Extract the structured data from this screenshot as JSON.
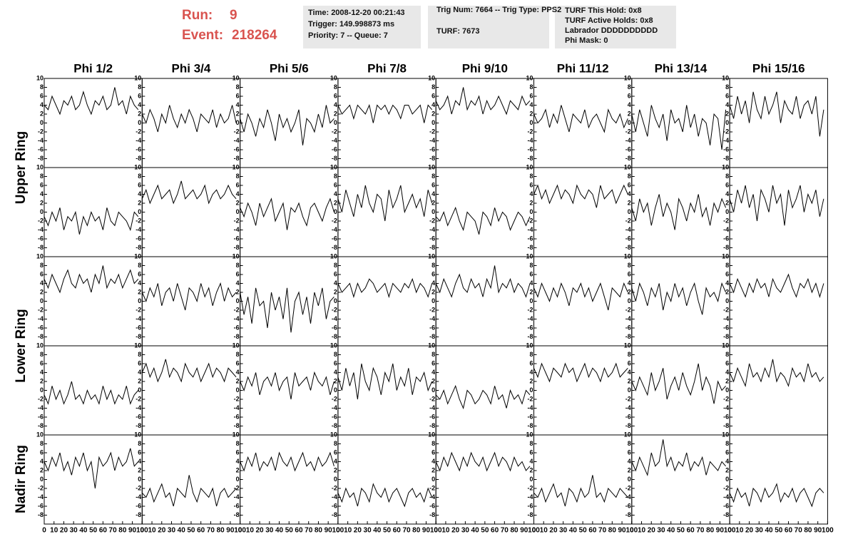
{
  "header": {
    "run_label": "Run:",
    "run": "9",
    "event_label": "Event:",
    "event": "218264"
  },
  "info": [
    [
      "Time: 2008-12-20 00:21:43",
      "Trigger: 149.998873 ms",
      "Priority: 7 -- Queue: 7"
    ],
    [
      "Trig Num: 7664 -- Trig Type: PPS2",
      "TURF: 7673"
    ],
    [
      "TURF This Hold: 0x8",
      "TURF Active Holds: 0x8",
      "Labrador DDDDDDDDDD",
      "Phi Mask: 0"
    ]
  ],
  "columns": [
    "Phi 1/2",
    "Phi 3/4",
    "Phi 5/6",
    "Phi 7/8",
    "Phi 9/10",
    "Phi 11/12",
    "Phi 13/14",
    "Phi 15/16"
  ],
  "rings": [
    "Upper Ring",
    "Lower Ring",
    "Nadir Ring"
  ],
  "axis": {
    "ylim": [
      -10,
      10
    ],
    "yticks": [
      -8,
      -6,
      -4,
      -2,
      0,
      2,
      4,
      6,
      8,
      10
    ],
    "xlim": [
      0,
      100
    ],
    "xticks": [
      0,
      10,
      20,
      30,
      40,
      50,
      60,
      70,
      80,
      90,
      100
    ],
    "x": [
      0,
      4,
      8,
      12,
      16,
      20,
      24,
      28,
      32,
      36,
      40,
      44,
      48,
      52,
      56,
      60,
      64,
      68,
      72,
      76,
      80,
      84,
      88,
      92,
      96
    ]
  },
  "panels": [
    [
      [
        4,
        3,
        6,
        4,
        2,
        5,
        4,
        6,
        3,
        4,
        7,
        4,
        2,
        5,
        4,
        6,
        3,
        4,
        8,
        4,
        5,
        2,
        6,
        4,
        3
      ],
      [
        2,
        0,
        3,
        1,
        -2,
        2,
        0,
        4,
        1,
        -1,
        2,
        0,
        3,
        1,
        -2,
        2,
        1,
        0,
        3,
        -1,
        2,
        0,
        1,
        4,
        0
      ],
      [
        1,
        -2,
        2,
        0,
        -3,
        1,
        -1,
        3,
        0,
        -4,
        2,
        -1,
        1,
        -2,
        0,
        3,
        -5,
        1,
        0,
        -2,
        2,
        -1,
        4,
        0,
        1
      ],
      [
        4,
        2,
        3,
        4,
        1,
        4,
        3,
        2,
        4,
        0,
        4,
        3,
        4,
        2,
        4,
        3,
        1,
        4,
        4,
        2,
        3,
        4,
        0,
        4,
        3
      ],
      [
        5,
        3,
        4,
        6,
        2,
        5,
        4,
        8,
        3,
        5,
        4,
        6,
        2,
        5,
        3,
        4,
        6,
        4,
        2,
        5,
        4,
        3,
        6,
        4,
        5
      ],
      [
        2,
        0,
        1,
        3,
        -1,
        2,
        0,
        4,
        1,
        -2,
        2,
        1,
        0,
        3,
        -1,
        1,
        2,
        0,
        -2,
        3,
        1,
        0,
        2,
        -1,
        1
      ],
      [
        2,
        -2,
        3,
        0,
        -3,
        4,
        1,
        -1,
        2,
        -4,
        3,
        0,
        1,
        -2,
        4,
        -1,
        2,
        -3,
        1,
        0,
        -5,
        2,
        1,
        -6,
        3
      ],
      [
        4,
        1,
        6,
        2,
        5,
        0,
        7,
        3,
        1,
        6,
        2,
        4,
        7,
        0,
        5,
        3,
        2,
        6,
        1,
        4,
        5,
        2,
        6,
        -3,
        3
      ]
    ],
    [
      [
        -1,
        -3,
        0,
        -2,
        1,
        -4,
        -1,
        -2,
        0,
        -5,
        -1,
        -3,
        0,
        -2,
        -1,
        -4,
        1,
        -2,
        -3,
        0,
        -1,
        -2,
        -4,
        0,
        -1
      ],
      [
        3,
        5,
        2,
        4,
        6,
        3,
        4,
        5,
        2,
        4,
        7,
        3,
        4,
        5,
        3,
        4,
        6,
        2,
        4,
        5,
        3,
        4,
        6,
        4,
        3
      ],
      [
        1,
        -1,
        2,
        0,
        -3,
        2,
        -1,
        1,
        3,
        -2,
        0,
        2,
        -4,
        1,
        0,
        2,
        -1,
        -3,
        1,
        2,
        0,
        -2,
        1,
        3,
        0
      ],
      [
        3,
        0,
        5,
        2,
        -1,
        4,
        1,
        6,
        2,
        0,
        4,
        3,
        -2,
        5,
        1,
        3,
        6,
        0,
        2,
        4,
        1,
        3,
        -1,
        5,
        2
      ],
      [
        -1,
        -2,
        0,
        -3,
        -1,
        1,
        -2,
        -4,
        0,
        -1,
        -2,
        -5,
        0,
        -1,
        -3,
        1,
        -2,
        0,
        -1,
        -4,
        -2,
        0,
        -1,
        -3,
        -1
      ],
      [
        4,
        6,
        3,
        5,
        2,
        4,
        6,
        3,
        5,
        4,
        2,
        6,
        4,
        3,
        5,
        4,
        1,
        6,
        3,
        4,
        5,
        2,
        4,
        6,
        4
      ],
      [
        1,
        -2,
        3,
        0,
        2,
        -3,
        1,
        4,
        -1,
        2,
        0,
        -4,
        3,
        1,
        -2,
        2,
        0,
        4,
        -1,
        1,
        -3,
        2,
        0,
        3,
        1
      ],
      [
        3,
        0,
        5,
        2,
        6,
        1,
        4,
        -2,
        5,
        3,
        0,
        6,
        2,
        4,
        -3,
        5,
        1,
        3,
        6,
        0,
        4,
        2,
        5,
        -1,
        3
      ]
    ],
    [
      [
        5,
        3,
        6,
        4,
        2,
        5,
        7,
        4,
        3,
        6,
        4,
        5,
        2,
        6,
        4,
        8,
        3,
        5,
        4,
        6,
        3,
        5,
        7,
        4,
        5
      ],
      [
        2,
        0,
        3,
        1,
        4,
        -1,
        2,
        3,
        0,
        4,
        1,
        -2,
        3,
        2,
        0,
        4,
        1,
        3,
        -1,
        2,
        4,
        0,
        3,
        1,
        2
      ],
      [
        2,
        -3,
        1,
        -5,
        3,
        -1,
        0,
        -6,
        2,
        -2,
        1,
        -4,
        3,
        -7,
        0,
        2,
        -3,
        1,
        -5,
        2,
        -1,
        3,
        -4,
        0,
        1
      ],
      [
        4,
        2,
        3,
        4,
        1,
        4,
        2,
        3,
        5,
        4,
        2,
        3,
        4,
        1,
        4,
        3,
        2,
        4,
        3,
        5,
        2,
        4,
        3,
        1,
        4
      ],
      [
        4,
        2,
        5,
        3,
        1,
        4,
        6,
        3,
        2,
        5,
        3,
        4,
        1,
        5,
        3,
        8,
        2,
        4,
        3,
        5,
        2,
        4,
        3,
        1,
        4
      ],
      [
        3,
        1,
        4,
        2,
        0,
        3,
        1,
        4,
        2,
        -1,
        3,
        2,
        4,
        1,
        3,
        0,
        2,
        4,
        1,
        -2,
        3,
        2,
        1,
        4,
        2
      ],
      [
        3,
        0,
        4,
        2,
        -1,
        3,
        1,
        4,
        -2,
        2,
        0,
        4,
        1,
        3,
        -1,
        2,
        4,
        0,
        -3,
        3,
        1,
        2,
        0,
        4,
        2
      ],
      [
        4,
        2,
        5,
        3,
        1,
        4,
        2,
        5,
        3,
        4,
        1,
        5,
        3,
        2,
        4,
        6,
        3,
        1,
        4,
        3,
        5,
        2,
        4,
        1,
        4
      ]
    ],
    [
      [
        -1,
        -3,
        1,
        -2,
        0,
        -3,
        -1,
        2,
        -2,
        -1,
        -3,
        0,
        -2,
        -1,
        -3,
        1,
        -2,
        0,
        -3,
        -1,
        -2,
        1,
        -3,
        -1,
        0
      ],
      [
        4,
        6,
        3,
        5,
        2,
        4,
        7,
        3,
        5,
        4,
        2,
        6,
        4,
        3,
        5,
        2,
        4,
        6,
        3,
        5,
        4,
        2,
        5,
        4,
        3
      ],
      [
        2,
        0,
        3,
        1,
        4,
        -1,
        2,
        3,
        1,
        4,
        0,
        2,
        3,
        -2,
        4,
        1,
        2,
        3,
        0,
        4,
        2,
        1,
        3,
        -1,
        2
      ],
      [
        3,
        0,
        5,
        1,
        4,
        -2,
        6,
        2,
        0,
        5,
        3,
        -1,
        4,
        2,
        6,
        0,
        3,
        1,
        5,
        -1,
        3,
        2,
        4,
        0,
        2
      ],
      [
        -1,
        -2,
        0,
        -3,
        -1,
        1,
        -2,
        -4,
        0,
        -1,
        -3,
        -2,
        0,
        -1,
        -3,
        1,
        -2,
        -1,
        -4,
        0,
        -2,
        -1,
        -3,
        0,
        -1
      ],
      [
        5,
        3,
        6,
        4,
        2,
        5,
        4,
        3,
        6,
        4,
        5,
        2,
        4,
        6,
        3,
        5,
        4,
        2,
        5,
        3,
        4,
        6,
        3,
        4,
        5
      ],
      [
        2,
        0,
        3,
        1,
        -1,
        4,
        0,
        2,
        5,
        -2,
        1,
        3,
        0,
        4,
        1,
        -1,
        2,
        6,
        0,
        3,
        1,
        -3,
        2,
        0,
        1
      ],
      [
        4,
        2,
        5,
        3,
        1,
        6,
        3,
        4,
        2,
        5,
        3,
        7,
        2,
        4,
        3,
        1,
        5,
        3,
        4,
        2,
        6,
        3,
        4,
        2,
        3
      ]
    ],
    [
      [
        4,
        2,
        5,
        3,
        6,
        2,
        4,
        1,
        5,
        3,
        6,
        2,
        4,
        -2,
        5,
        3,
        4,
        6,
        2,
        5,
        3,
        4,
        7,
        3,
        4
      ],
      [
        -3,
        -4,
        -2,
        -5,
        -3,
        -1,
        -4,
        -3,
        -6,
        -2,
        -3,
        -4,
        1,
        -3,
        -5,
        -2,
        -3,
        -4,
        -2,
        -6,
        -3,
        -2,
        -4,
        -3,
        -2
      ],
      [
        4,
        2,
        5,
        3,
        6,
        2,
        4,
        3,
        5,
        2,
        6,
        4,
        3,
        5,
        2,
        4,
        6,
        3,
        4,
        2,
        5,
        3,
        4,
        6,
        3
      ],
      [
        -3,
        -5,
        -2,
        -4,
        -3,
        -6,
        -2,
        -3,
        -5,
        -1,
        -3,
        -4,
        -2,
        -5,
        -3,
        -2,
        -4,
        -6,
        -3,
        -2,
        -4,
        -3,
        -5,
        -2,
        -4
      ],
      [
        4,
        2,
        5,
        3,
        6,
        4,
        2,
        5,
        3,
        6,
        4,
        3,
        5,
        2,
        4,
        6,
        3,
        5,
        4,
        2,
        5,
        3,
        4,
        2,
        3
      ],
      [
        -3,
        -4,
        -2,
        -5,
        -3,
        -1,
        -4,
        -3,
        -6,
        -2,
        -3,
        -5,
        -2,
        -4,
        -3,
        1,
        -4,
        -3,
        -5,
        -2,
        -3,
        -4,
        -2,
        -3,
        -4
      ],
      [
        4,
        2,
        5,
        3,
        1,
        6,
        3,
        4,
        9,
        3,
        5,
        2,
        4,
        3,
        6,
        2,
        4,
        3,
        5,
        1,
        4,
        3,
        2,
        4,
        3
      ],
      [
        -3,
        -5,
        -2,
        -4,
        -3,
        -6,
        -2,
        -3,
        -5,
        -2,
        -4,
        -3,
        -1,
        -5,
        -3,
        -4,
        -2,
        -5,
        -3,
        -2,
        -4,
        -6,
        -3,
        -2,
        -3
      ]
    ]
  ]
}
